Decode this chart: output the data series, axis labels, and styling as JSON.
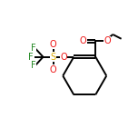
{
  "bg_color": "#ffffff",
  "bond_color": "#000000",
  "atom_colors": {
    "O": "#ee1111",
    "S": "#ddaa00",
    "F": "#228822",
    "C": "#000000"
  },
  "figsize": [
    1.52,
    1.52
  ],
  "dpi": 100,
  "line_width": 1.4,
  "font_size": 7.0
}
